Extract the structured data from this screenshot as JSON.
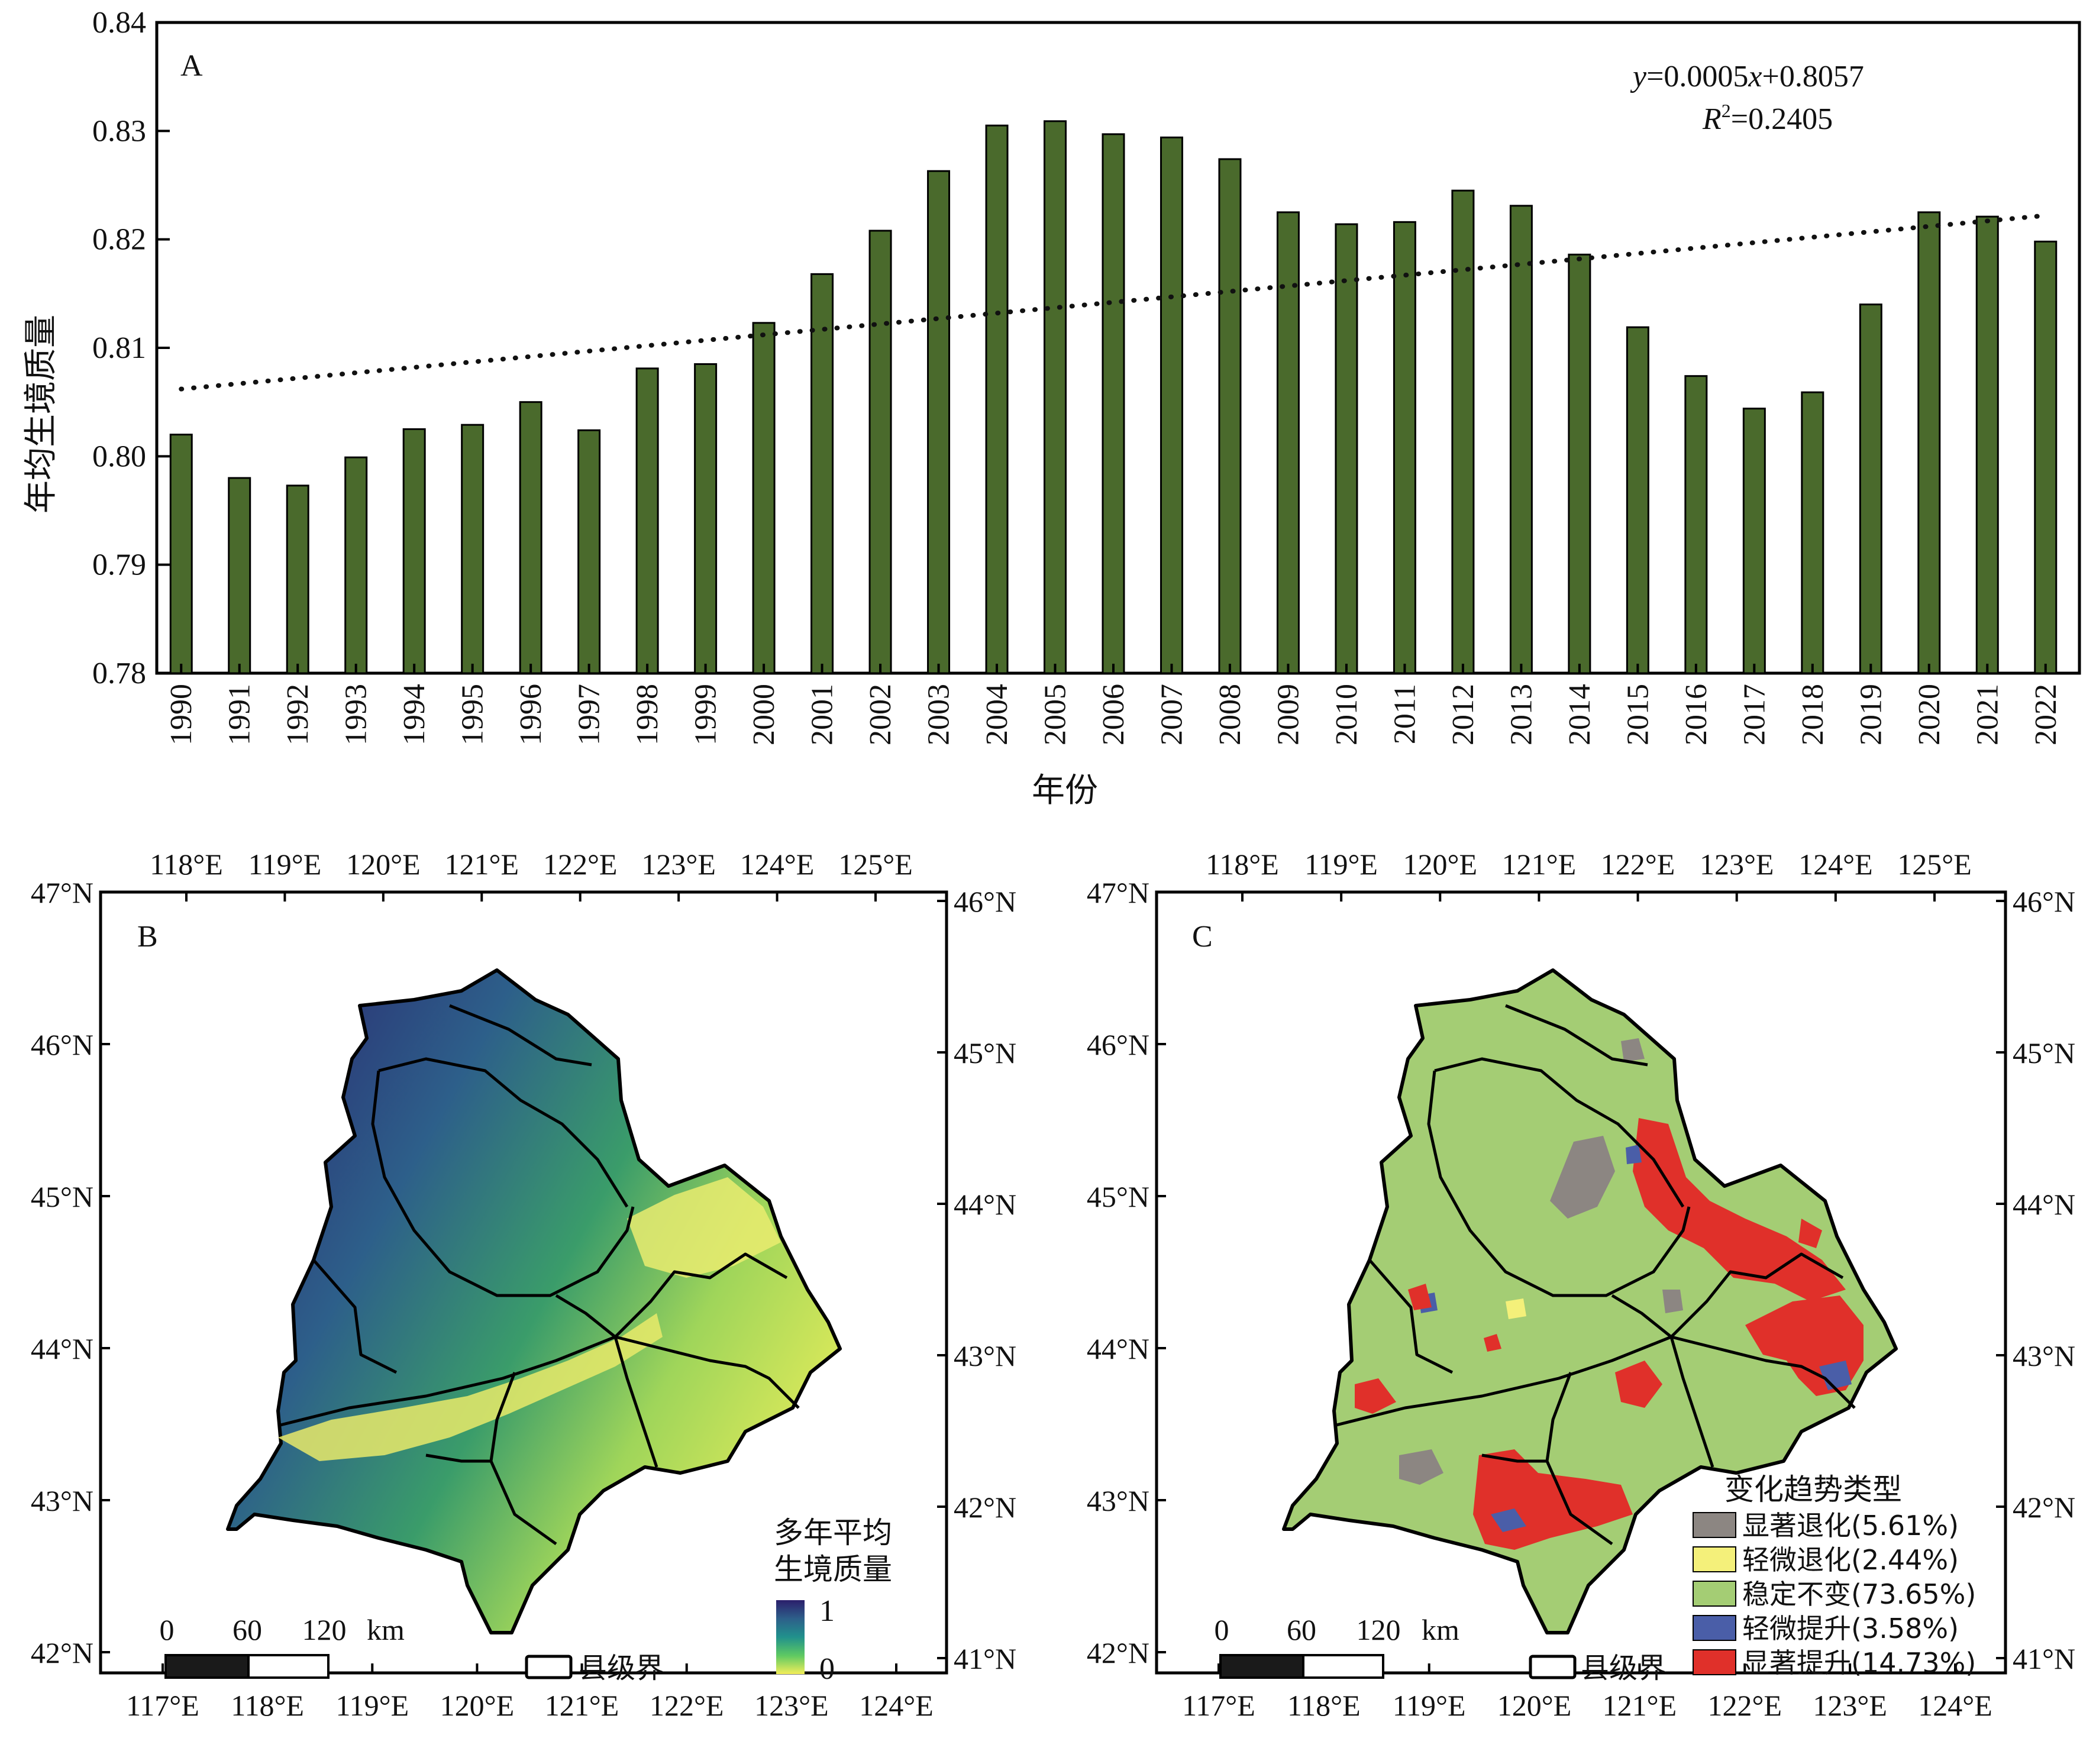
{
  "chart_data": [
    {
      "panel": "A",
      "type": "bar",
      "xlabel": "年份",
      "ylabel": "年均生境质量",
      "ylim": [
        0.78,
        0.84
      ],
      "yticks": [
        "0.78",
        "0.79",
        "0.80",
        "0.81",
        "0.82",
        "0.83",
        "0.84"
      ],
      "categories": [
        "1990",
        "1991",
        "1992",
        "1993",
        "1994",
        "1995",
        "1996",
        "1997",
        "1998",
        "1999",
        "2000",
        "2001",
        "2002",
        "2003",
        "2004",
        "2005",
        "2006",
        "2007",
        "2008",
        "2009",
        "2010",
        "2011",
        "2012",
        "2013",
        "2014",
        "2015",
        "2016",
        "2017",
        "2018",
        "2019",
        "2020",
        "2021",
        "2022"
      ],
      "values": [
        0.802,
        0.798,
        0.7973,
        0.7999,
        0.8025,
        0.8029,
        0.805,
        0.8024,
        0.8081,
        0.8085,
        0.8123,
        0.8168,
        0.8208,
        0.8263,
        0.8305,
        0.8309,
        0.8297,
        0.8294,
        0.8274,
        0.8225,
        0.8214,
        0.8216,
        0.8245,
        0.8231,
        0.8186,
        0.8119,
        0.8074,
        0.8044,
        0.8059,
        0.814,
        0.8225,
        0.8221,
        0.8198
      ],
      "bar_color": "#4a6a2c",
      "trendline": {
        "slope": 0.0005,
        "intercept": 0.8057,
        "style": "dotted",
        "equation_lhs": "y",
        "equation_rhs": "=0.0005",
        "equation_var": "x",
        "equation_tail": "+0.8057",
        "r2_label": "R",
        "r2_sup": "2",
        "r2_value": "=0.2405"
      },
      "grid": false
    },
    {
      "panel": "B",
      "type": "map",
      "top_lon_ticks": [
        "118°E",
        "119°E",
        "120°E",
        "121°E",
        "122°E",
        "123°E",
        "124°E",
        "125°E"
      ],
      "bottom_lon_ticks": [
        "117°E",
        "118°E",
        "119°E",
        "120°E",
        "121°E",
        "122°E",
        "123°E",
        "124°E"
      ],
      "left_lat_ticks": [
        "47°N",
        "46°N",
        "45°N",
        "44°N",
        "43°N",
        "42°N"
      ],
      "right_lat_ticks": [
        "46°N",
        "45°N",
        "44°N",
        "43°N",
        "42°N",
        "41°N"
      ],
      "legend_title_line1": "多年平均",
      "legend_title_line2": "生境质量",
      "legend_max": "1",
      "legend_min": "0",
      "colormap": [
        "#2b1f6b",
        "#2d5f8a",
        "#21918c",
        "#5ec962",
        "#f3ee5a"
      ],
      "scalebar": {
        "labels": [
          "0",
          "60",
          "120"
        ],
        "unit": "km"
      },
      "boundary_legend": "县级界"
    },
    {
      "panel": "C",
      "type": "map",
      "top_lon_ticks": [
        "118°E",
        "119°E",
        "120°E",
        "121°E",
        "122°E",
        "123°E",
        "124°E",
        "125°E"
      ],
      "bottom_lon_ticks": [
        "117°E",
        "118°E",
        "119°E",
        "120°E",
        "121°E",
        "122°E",
        "123°E",
        "124°E"
      ],
      "left_lat_ticks": [
        "47°N",
        "46°N",
        "45°N",
        "44°N",
        "43°N",
        "42°N"
      ],
      "right_lat_ticks": [
        "46°N",
        "45°N",
        "44°N",
        "43°N",
        "42°N",
        "41°N"
      ],
      "legend_title": "变化趋势类型",
      "legend": [
        {
          "label": "显著退化(5.61%)",
          "color": "#8c8682",
          "pct": 5.61
        },
        {
          "label": "轻微退化(2.44%)",
          "color": "#f4f07a",
          "pct": 2.44
        },
        {
          "label": "稳定不变(73.65%)",
          "color": "#a4cd74",
          "pct": 73.65
        },
        {
          "label": "轻微提升(3.58%)",
          "color": "#4a5ea8",
          "pct": 3.58
        },
        {
          "label": "显著提升(14.73%)",
          "color": "#e0302a",
          "pct": 14.73
        }
      ],
      "scalebar": {
        "labels": [
          "0",
          "60",
          "120"
        ],
        "unit": "km"
      },
      "boundary_legend": "县级界"
    }
  ]
}
